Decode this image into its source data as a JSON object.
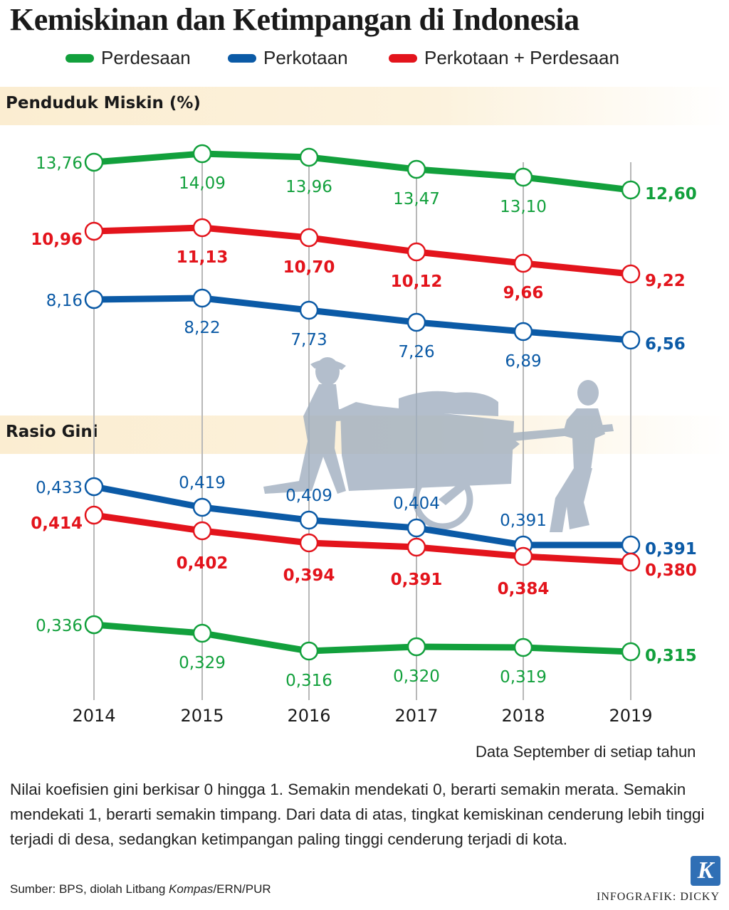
{
  "title": "Kemiskinan dan Ketimpangan di Indonesia",
  "legend": [
    {
      "name": "Perdesaan",
      "color": "#12a03c"
    },
    {
      "name": "Perkotaan",
      "color": "#0b5aa6"
    },
    {
      "name": "Perkotaan + Perdesaan",
      "color": "#e3141c"
    }
  ],
  "colors": {
    "green": "#12a03c",
    "blue": "#0b5aa6",
    "red": "#e3141c",
    "grid": "#b8b8b8",
    "band": "#fbedd1"
  },
  "note": "Data September di setiap tahun",
  "description": "Nilai koefisien gini berkisar 0 hingga 1. Semakin mendekati 0, berarti semakin merata. Semakin mendekati 1, berarti semakin timpang. Dari data di atas, tingkat kemiskinan cenderung lebih tinggi terjadi di desa, sedangkan ketimpangan paling tinggi cenderung terjadi di kota.",
  "source": {
    "prefix": "Sumber: BPS, diolah Litbang ",
    "italic": "Kompas",
    "suffix": "/ERN/PUR"
  },
  "logo": "K",
  "credit": "INFOGRAFIK: DICKY",
  "chart_data": [
    {
      "type": "line",
      "title": "Penduduk Miskin (%)",
      "x": [
        "2014",
        "2015",
        "2016",
        "2017",
        "2018",
        "2019"
      ],
      "series": [
        {
          "name": "Perdesaan",
          "color": "#12a03c",
          "values": [
            13.76,
            14.09,
            13.96,
            13.47,
            13.1,
            12.6
          ],
          "labels": [
            "13,76",
            "14,09",
            "13,96",
            "13,47",
            "13,10",
            "12,60"
          ]
        },
        {
          "name": "Perkotaan + Perdesaan",
          "color": "#e3141c",
          "values": [
            10.96,
            11.13,
            10.7,
            10.12,
            9.66,
            9.22
          ],
          "labels": [
            "10,96",
            "11,13",
            "10,70",
            "10,12",
            "9,66",
            "9,22"
          ]
        },
        {
          "name": "Perkotaan",
          "color": "#0b5aa6",
          "values": [
            8.16,
            8.22,
            7.73,
            7.26,
            6.89,
            6.56
          ],
          "labels": [
            "8,16",
            "8,22",
            "7,73",
            "7,26",
            "6,89",
            "6,56"
          ]
        }
      ]
    },
    {
      "type": "line",
      "title": "Rasio Gini",
      "x": [
        "2014",
        "2015",
        "2016",
        "2017",
        "2018",
        "2019"
      ],
      "series": [
        {
          "name": "Perkotaan",
          "color": "#0b5aa6",
          "values": [
            0.433,
            0.419,
            0.409,
            0.404,
            0.391,
            0.391
          ],
          "labels": [
            "0,433",
            "0,419",
            "0,409",
            "0,404",
            "0,391",
            "0,391"
          ]
        },
        {
          "name": "Perkotaan + Perdesaan",
          "color": "#e3141c",
          "values": [
            0.414,
            0.402,
            0.394,
            0.391,
            0.384,
            0.38
          ],
          "labels": [
            "0,414",
            "0,402",
            "0,394",
            "0,391",
            "0,384",
            "0,380"
          ]
        },
        {
          "name": "Perdesaan",
          "color": "#12a03c",
          "values": [
            0.336,
            0.329,
            0.316,
            0.32,
            0.319,
            0.315
          ],
          "labels": [
            "0,336",
            "0,329",
            "0,316",
            "0,320",
            "0,319",
            "0,315"
          ]
        }
      ]
    }
  ]
}
